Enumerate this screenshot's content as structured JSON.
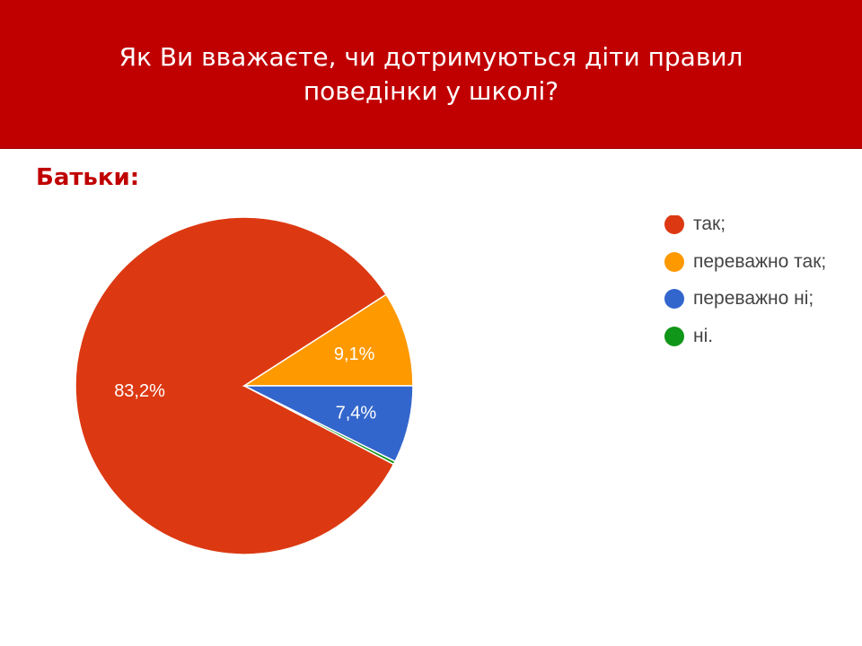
{
  "header": {
    "title": "Як Ви вважаєте, чи дотримуються діти правил\nповедінки у школі?"
  },
  "section_label": "Батьки:",
  "chart_data": {
    "type": "pie",
    "title": "",
    "legend_position": "right",
    "slices": [
      {
        "label": "так;",
        "value": 83.2,
        "display": "83,2%",
        "color": "#dc3912"
      },
      {
        "label": "переважно так;",
        "value": 9.1,
        "display": "9,1%",
        "color": "#ff9900"
      },
      {
        "label": "переважно ні;",
        "value": 7.4,
        "display": "7,4%",
        "color": "#3366cc"
      },
      {
        "label": "ні.",
        "value": 0.3,
        "display": "",
        "color": "#109618"
      }
    ]
  }
}
